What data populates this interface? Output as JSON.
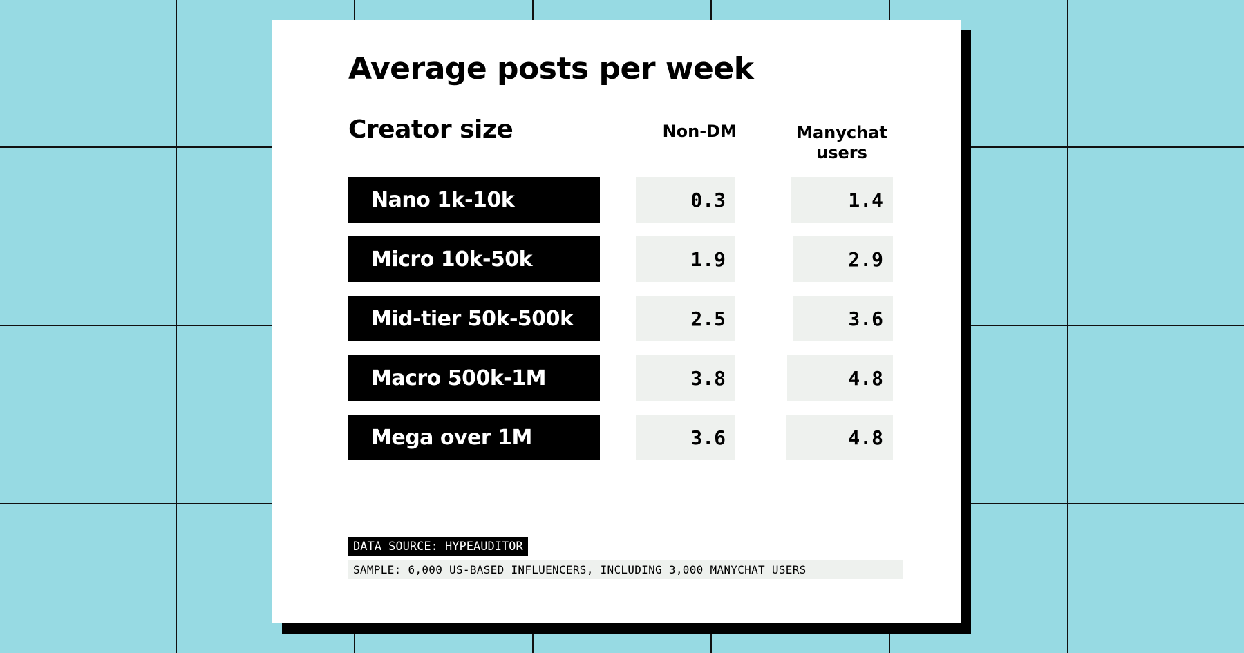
{
  "colors": {
    "background": "#97dae3",
    "card": "#ffffff",
    "label_fill": "#000000",
    "value_fill": "#eef1ee",
    "grid_lines": "#111111"
  },
  "chart_data": {
    "type": "table",
    "title": "Average posts per week",
    "row_header": "Creator size",
    "columns": [
      "Non-DM",
      "Manychat\nusers"
    ],
    "rows": [
      {
        "label": "Nano 1k-10k",
        "non_dm": "0.3",
        "manychat": "1.4"
      },
      {
        "label": "Micro 10k-50k",
        "non_dm": "1.9",
        "manychat": "2.9"
      },
      {
        "label": "Mid-tier 50k-500k",
        "non_dm": "2.5",
        "manychat": "3.6"
      },
      {
        "label": "Macro 500k-1M",
        "non_dm": "3.8",
        "manychat": "4.8"
      },
      {
        "label": "Mega over 1M",
        "non_dm": "3.6",
        "manychat": "4.8"
      }
    ],
    "source": "DATA SOURCE: HYPEAUDITOR",
    "sample": "SAMPLE: 6,000 US-BASED INFLUENCERS, INCLUDING 3,000 MANYCHAT USERS"
  }
}
